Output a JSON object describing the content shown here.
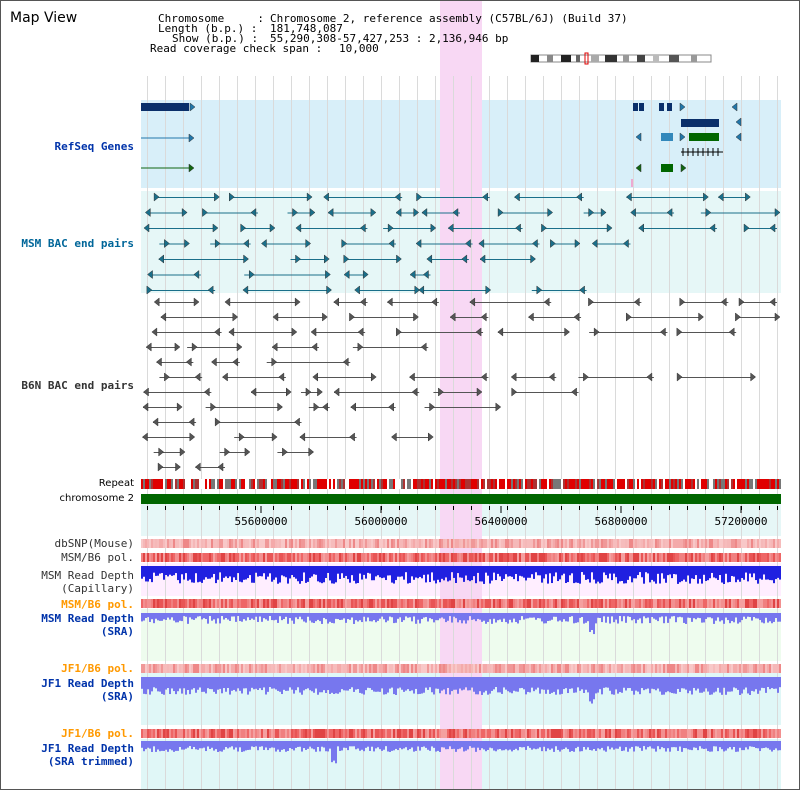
{
  "header": {
    "title": "Map View",
    "chromosome_label": "Chromosome     :",
    "chromosome_value": "Chromosome 2, reference assembly (C57BL/6J) (Build 37)",
    "length_label": "Length (b.p.) :",
    "length_value": "181,748,087",
    "show_label": "Show (b.p.) :",
    "show_value": "55,290,308-57,427,253 : 2,136,946 bp",
    "coverage_label": "Read coverage check span :",
    "coverage_value": "10,000"
  },
  "tracks": {
    "refseq": "RefSeq Genes",
    "msm_bac": "MSM BAC end pairs",
    "b6n_bac": "B6N BAC end pairs",
    "repeat": "Repeat",
    "chromosome": "chromosome 2",
    "dbsnp": "dbSNP(Mouse)",
    "msm_b6_pol": "MSM/B6 pol.",
    "msm_depth_cap_1": "MSM Read Depth",
    "msm_depth_cap_2": "(Capillary)",
    "msm_b6_pol_2": "MSM/B6 pol.",
    "msm_depth_sra_1": "MSM Read Depth",
    "msm_depth_sra_2": "(SRA)",
    "jf1_b6_pol": "JF1/B6 pol.",
    "jf1_depth_sra_1": "JF1 Read Depth",
    "jf1_depth_sra_2": "(SRA)",
    "jf1_b6_pol_2": "JF1/B6 pol.",
    "jf1_depth_trim_1": "JF1 Read Depth",
    "jf1_depth_trim_2": "(SRA trimmed)"
  },
  "axis_ticks": [
    "55600000",
    "56000000",
    "56400000",
    "56800000",
    "57200000"
  ],
  "colors": {
    "highlight": "#f8d8f4",
    "refseq_bg": "#d8eff9",
    "msm_bg": "#e6f7f7",
    "chromosome_bar": "#006600",
    "repeat_red": "#e00000",
    "depth_blue": "#2020e0",
    "depth_light": "#7777ee"
  }
}
